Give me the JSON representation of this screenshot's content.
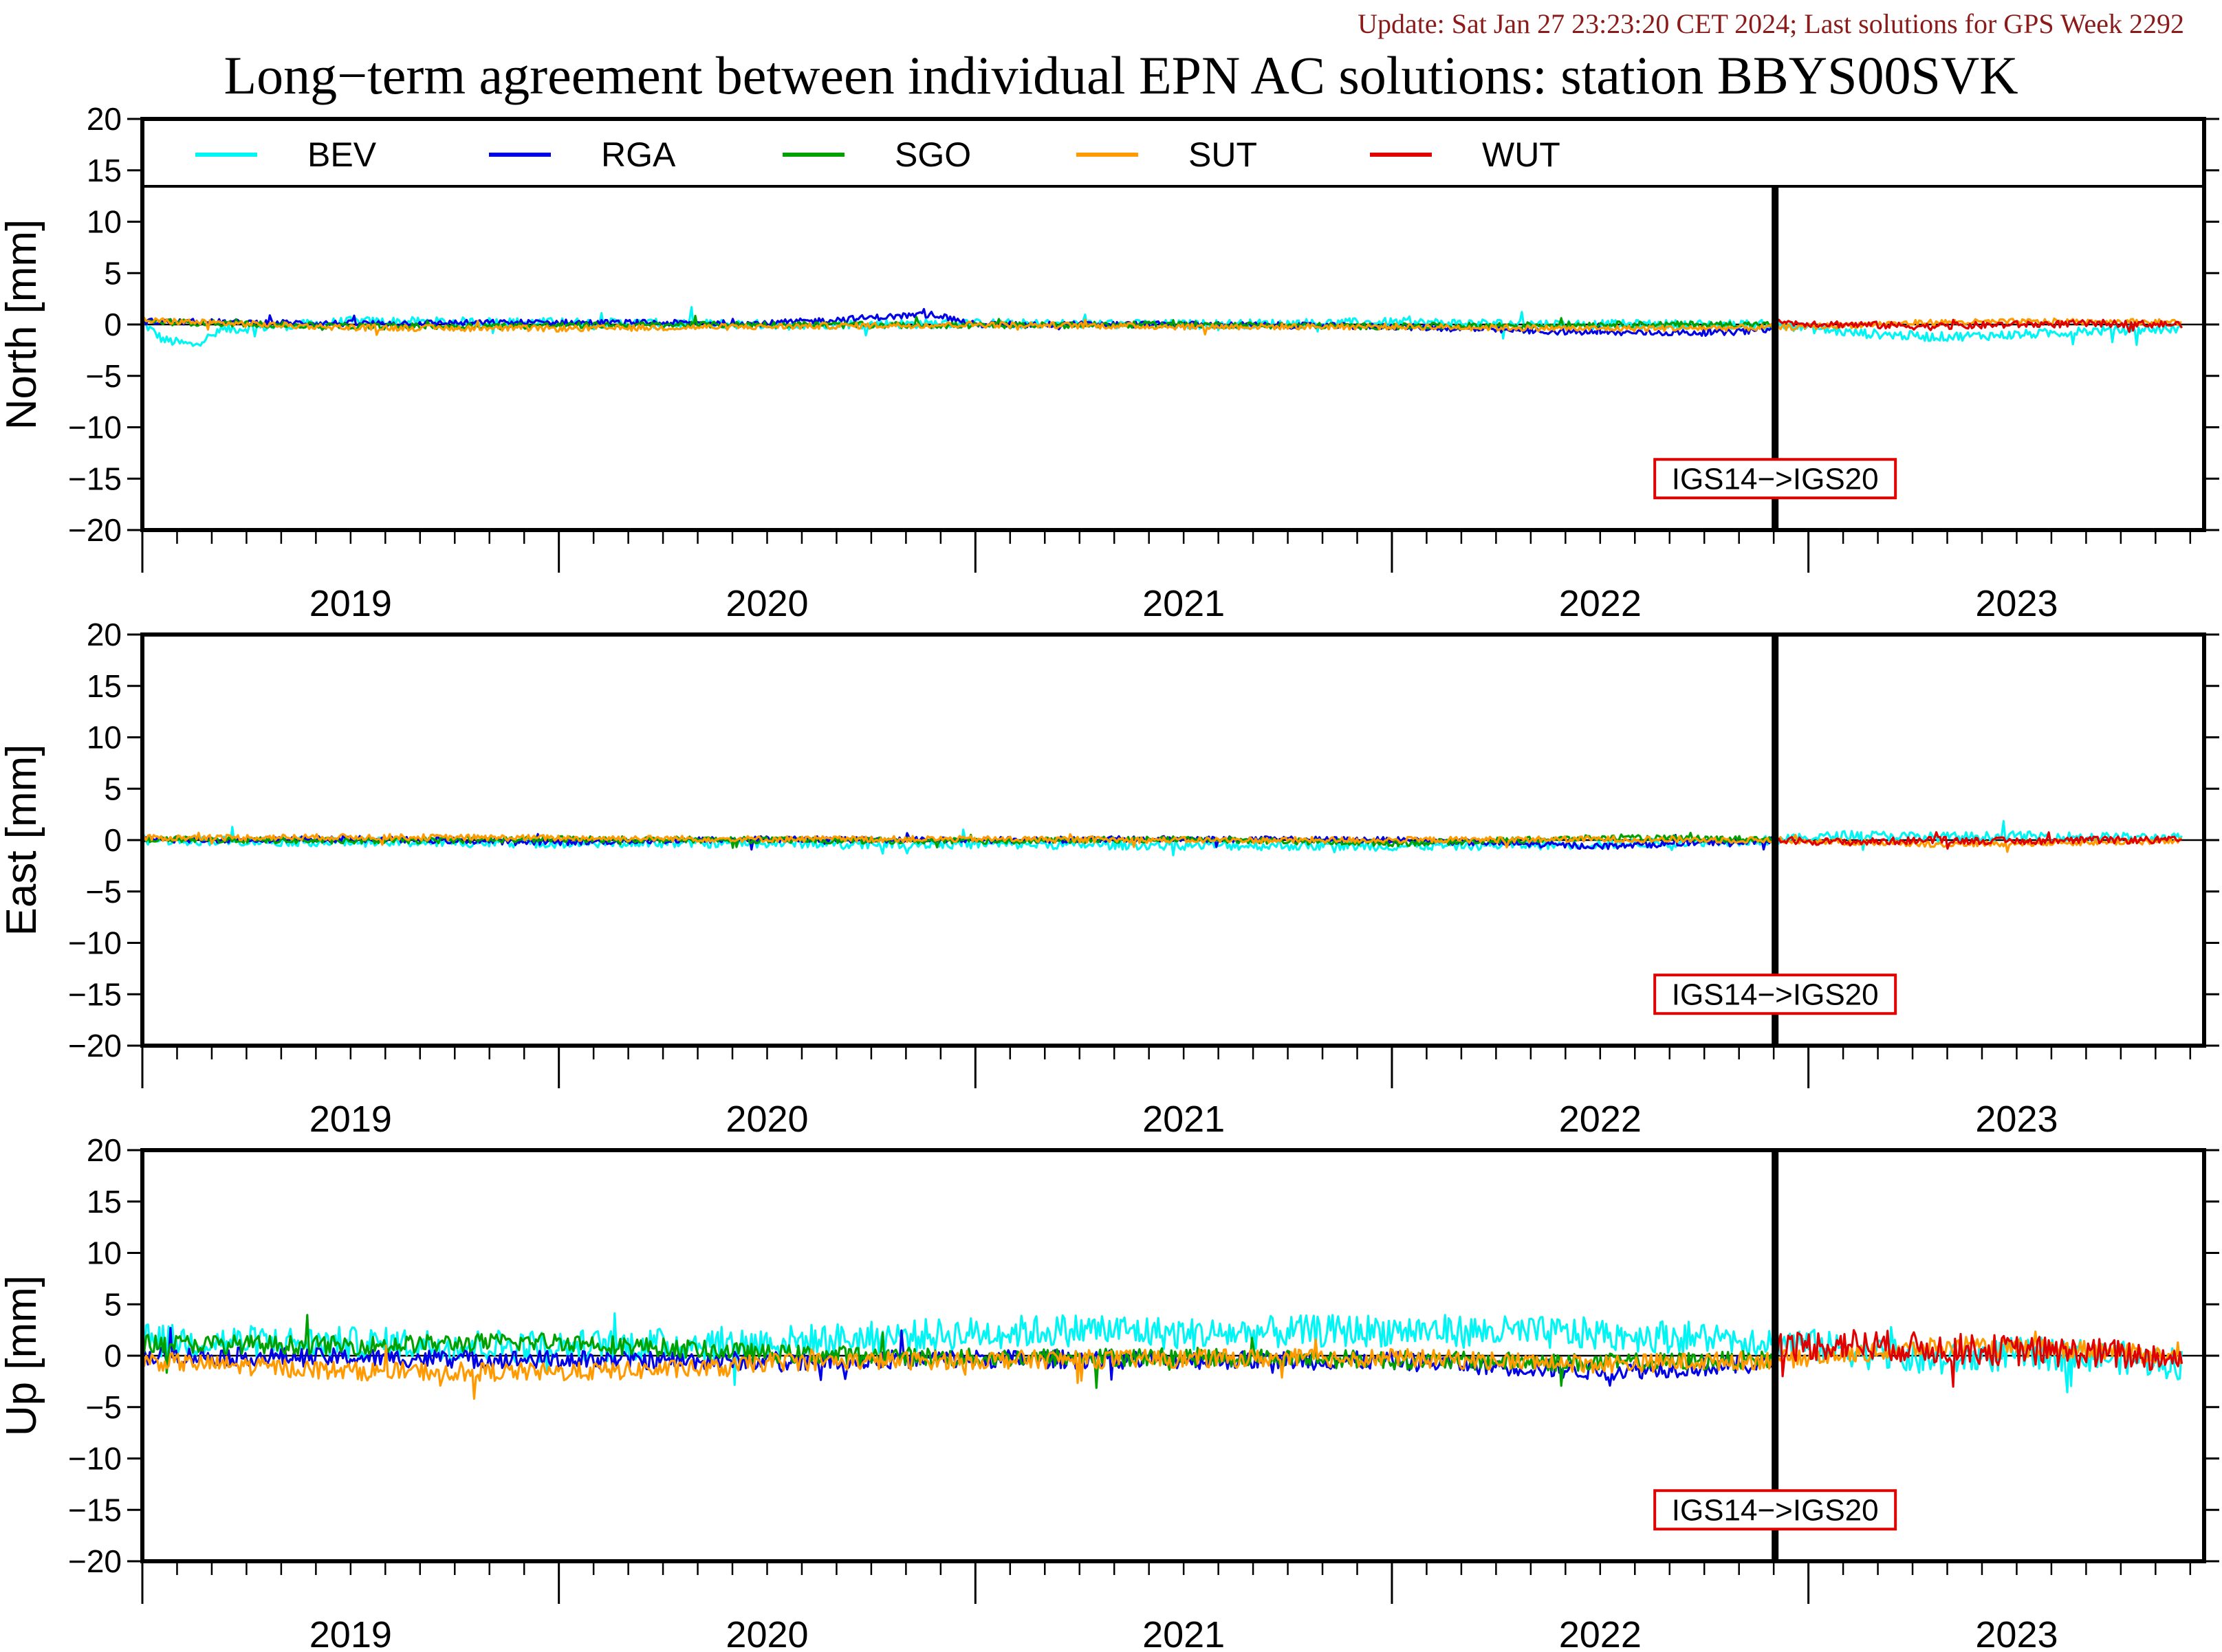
{
  "header": {
    "update_text": "Update: Sat Jan 27 23:23:20 CET 2024; Last solutions for GPS Week 2292",
    "title": "Long−term agreement between individual EPN AC solutions: station BBYS00SVK"
  },
  "colors": {
    "BEV": "#00f5f5",
    "RGA": "#0000e6",
    "SGO": "#00a000",
    "SUT": "#ff9a00",
    "WUT": "#e00000",
    "update_text": "#8b1a1a",
    "annotation_border": "#e00000"
  },
  "chart_data": {
    "type": "line",
    "x_axis": {
      "unit": "year",
      "range": [
        2018.5,
        2023.45
      ],
      "tick_labels": [
        "2019",
        "2020",
        "2021",
        "2022",
        "2023"
      ],
      "tick_label_positions": [
        2019.0,
        2020.0,
        2021.0,
        2022.0,
        2023.0
      ],
      "major_ticks": [
        2018.5,
        2019.5,
        2020.5,
        2021.5,
        2022.5,
        2023.5
      ]
    },
    "legend": {
      "placement": "top inside first panel",
      "entries": [
        "BEV",
        "RGA",
        "SGO",
        "SUT",
        "WUT"
      ]
    },
    "vertical_marker": {
      "x": 2022.42,
      "label": "IGS14−>IGS20"
    },
    "panels": [
      {
        "ylabel": "North [mm]",
        "ylim": [
          -20,
          20
        ],
        "yticks": [
          -20,
          -15,
          -10,
          -5,
          0,
          5,
          10,
          15,
          20
        ],
        "series": [
          {
            "name": "BEV",
            "x": [
              2018.5,
              2018.55,
              2018.62,
              2018.7,
              2019.0,
              2019.5,
              2020.0,
              2020.5,
              2021.0,
              2021.5,
              2022.0,
              2022.42,
              2022.6,
              2022.8,
              2023.0,
              2023.2,
              2023.4
            ],
            "y": [
              0.2,
              -1.5,
              -2.0,
              -0.5,
              0.3,
              0.2,
              0.0,
              0.1,
              0.0,
              0.2,
              0.0,
              0.0,
              -0.8,
              -1.2,
              -1.0,
              -0.6,
              -0.4
            ]
          },
          {
            "name": "RGA",
            "x": [
              2018.5,
              2019.0,
              2019.5,
              2020.0,
              2020.4,
              2020.5,
              2021.0,
              2021.5,
              2021.8,
              2022.0,
              2022.3,
              2022.42
            ],
            "y": [
              0.3,
              0.1,
              0.2,
              0.1,
              1.0,
              0.0,
              0.0,
              -0.2,
              -0.6,
              -0.8,
              -0.8,
              -0.4
            ]
          },
          {
            "name": "SGO",
            "x": [
              2018.5,
              2019.0,
              2019.5,
              2020.0,
              2020.5,
              2021.0,
              2021.5,
              2022.0,
              2022.42
            ],
            "y": [
              0.3,
              -0.2,
              -0.1,
              0.0,
              -0.1,
              0.0,
              -0.2,
              0.0,
              0.0
            ]
          },
          {
            "name": "SUT",
            "x": [
              2018.5,
              2019.0,
              2019.5,
              2020.0,
              2020.5,
              2021.0,
              2021.5,
              2022.0,
              2022.42,
              2022.8,
              2023.2,
              2023.4
            ],
            "y": [
              0.4,
              -0.3,
              -0.4,
              -0.2,
              0.0,
              -0.2,
              -0.2,
              -0.4,
              -0.3,
              0.2,
              0.3,
              0.2
            ]
          },
          {
            "name": "WUT",
            "x": [
              2022.42,
              2022.6,
              2022.8,
              2023.0,
              2023.2,
              2023.4
            ],
            "y": [
              0.2,
              0.0,
              -0.2,
              0.0,
              0.1,
              0.0
            ]
          }
        ]
      },
      {
        "ylabel": "East [mm]",
        "ylim": [
          -20,
          20
        ],
        "yticks": [
          -20,
          -15,
          -10,
          -5,
          0,
          5,
          10,
          15,
          20
        ],
        "series": [
          {
            "name": "BEV",
            "x": [
              2018.5,
              2019.0,
              2019.5,
              2020.0,
              2020.5,
              2021.0,
              2021.5,
              2022.0,
              2022.42,
              2022.6,
              2022.8,
              2023.0,
              2023.2,
              2023.4
            ],
            "y": [
              0.0,
              -0.2,
              -0.3,
              -0.3,
              -0.4,
              -0.5,
              -0.6,
              -0.4,
              0.0,
              0.5,
              0.3,
              0.4,
              0.3,
              0.2
            ]
          },
          {
            "name": "RGA",
            "x": [
              2018.5,
              2019.0,
              2019.5,
              2020.0,
              2020.5,
              2021.0,
              2021.5,
              2022.0,
              2022.42
            ],
            "y": [
              0.0,
              0.1,
              -0.2,
              0.1,
              0.0,
              0.1,
              0.0,
              -0.6,
              0.0
            ]
          },
          {
            "name": "SGO",
            "x": [
              2018.5,
              2019.0,
              2019.5,
              2020.0,
              2020.5,
              2021.0,
              2021.5,
              2022.0,
              2022.42
            ],
            "y": [
              0.1,
              -0.1,
              0.1,
              0.0,
              -0.1,
              0.1,
              -0.3,
              0.2,
              0.1
            ]
          },
          {
            "name": "SUT",
            "x": [
              2018.5,
              2019.0,
              2019.5,
              2020.0,
              2020.5,
              2021.0,
              2021.5,
              2022.0,
              2022.42,
              2022.8,
              2023.2,
              2023.4
            ],
            "y": [
              0.2,
              0.3,
              0.2,
              0.1,
              0.1,
              0.0,
              0.0,
              0.1,
              0.0,
              -0.4,
              -0.2,
              -0.1
            ]
          },
          {
            "name": "WUT",
            "x": [
              2022.42,
              2022.6,
              2022.8,
              2023.0,
              2023.2,
              2023.4
            ],
            "y": [
              0.0,
              -0.2,
              0.0,
              -0.1,
              0.0,
              0.0
            ]
          }
        ]
      },
      {
        "ylabel": "Up [mm]",
        "ylim": [
          -20,
          20
        ],
        "yticks": [
          -20,
          -15,
          -10,
          -5,
          0,
          5,
          10,
          15,
          20
        ],
        "series": [
          {
            "name": "BEV",
            "x": [
              2018.5,
              2019.0,
              2019.5,
              2020.0,
              2020.5,
              2020.8,
              2021.0,
              2021.5,
              2022.0,
              2022.42,
              2022.6,
              2022.8,
              2023.0,
              2023.2,
              2023.4
            ],
            "y": [
              1.5,
              1.2,
              0.9,
              1.3,
              2.2,
              2.6,
              2.1,
              2.5,
              2.1,
              1.5,
              0.5,
              -0.5,
              0.2,
              0.0,
              -0.8
            ]
          },
          {
            "name": "RGA",
            "x": [
              2018.5,
              2019.0,
              2019.5,
              2020.0,
              2020.5,
              2021.0,
              2021.5,
              2022.0,
              2022.42
            ],
            "y": [
              0.0,
              -0.2,
              -0.4,
              -0.5,
              -0.3,
              -0.4,
              -0.5,
              -1.5,
              -0.8
            ]
          },
          {
            "name": "SGO",
            "x": [
              2018.5,
              2019.0,
              2019.5,
              2020.0,
              2020.5,
              2021.0,
              2021.5,
              2022.0,
              2022.42
            ],
            "y": [
              1.2,
              1.0,
              1.4,
              0.2,
              -0.2,
              -0.1,
              -0.4,
              -0.7,
              -0.4
            ]
          },
          {
            "name": "SUT",
            "x": [
              2018.5,
              2019.0,
              2019.5,
              2019.9,
              2020.0,
              2020.5,
              2021.0,
              2021.5,
              2022.0,
              2022.42,
              2022.8,
              2023.2,
              2023.4
            ],
            "y": [
              -0.5,
              -1.5,
              -1.6,
              -1.2,
              -0.6,
              -0.4,
              -0.3,
              -0.2,
              -0.8,
              -0.4,
              0.8,
              0.6,
              -0.2
            ]
          },
          {
            "name": "WUT",
            "x": [
              2022.42,
              2022.6,
              2022.8,
              2023.0,
              2023.2,
              2023.4
            ],
            "y": [
              0.8,
              1.2,
              0.7,
              0.5,
              0.2,
              -0.2
            ]
          }
        ]
      }
    ]
  }
}
